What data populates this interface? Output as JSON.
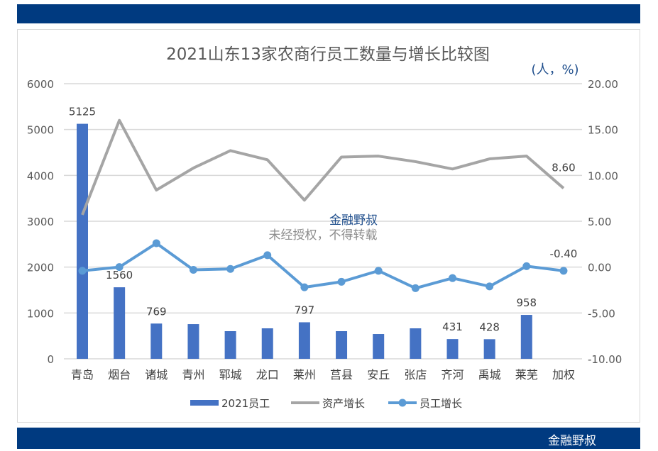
{
  "header_band": {
    "color": "#003a80"
  },
  "footer": {
    "brand": "金融野叔"
  },
  "watermark": {
    "line1": "金融野叔",
    "line2": "未经授权，不得转载"
  },
  "chart_data": {
    "type": "bar+line",
    "title": "2021山东13家农商行员工数量与增长比较图",
    "right_axis_unit": "(人，%)",
    "categories": [
      "青岛",
      "烟台",
      "诸城",
      "青州",
      "郓城",
      "龙口",
      "莱州",
      "莒县",
      "安丘",
      "张店",
      "齐河",
      "禹城",
      "莱芜",
      "加权"
    ],
    "left_axis": {
      "range": [
        0,
        6000
      ],
      "ticks": [
        "0",
        "1000",
        "2000",
        "3000",
        "4000",
        "5000",
        "6000"
      ]
    },
    "right_axis": {
      "range": [
        -10,
        20
      ],
      "ticks": [
        "-10.00",
        "-5.00",
        "0.00",
        "5.00",
        "10.00",
        "15.00",
        "20.00"
      ]
    },
    "grid": true,
    "legend_position": "bottom",
    "series": [
      {
        "name": "2021员工",
        "type": "bar",
        "axis": "left",
        "color": "#4472c4",
        "values": [
          5125,
          1560,
          769,
          757,
          603,
          665,
          797,
          603,
          541,
          665,
          431,
          428,
          958,
          null
        ],
        "labels": [
          "5125",
          "1560",
          "769",
          "",
          "",
          "",
          "797",
          "",
          "",
          "",
          "431",
          "428",
          "958",
          ""
        ]
      },
      {
        "name": "资产增长",
        "type": "line",
        "axis": "right",
        "color": "#a5a5a5",
        "values": [
          5.7,
          16.0,
          8.4,
          10.8,
          12.7,
          11.7,
          7.3,
          12.0,
          12.1,
          11.5,
          10.7,
          11.8,
          12.1,
          8.6
        ],
        "labels": [
          "",
          "",
          "",
          "",
          "",
          "",
          "",
          "",
          "",
          "",
          "",
          "",
          "",
          "8.60"
        ]
      },
      {
        "name": "员工增长",
        "type": "line-marker",
        "axis": "right",
        "color": "#5b9bd5",
        "values": [
          -0.4,
          0.0,
          2.6,
          -0.3,
          -0.2,
          1.3,
          -2.2,
          -1.6,
          -0.4,
          -2.3,
          -1.2,
          -2.1,
          0.1,
          -0.4
        ],
        "labels": [
          "",
          "",
          "",
          "",
          "",
          "",
          "",
          "",
          "",
          "",
          "",
          "",
          "",
          "-0.40"
        ]
      }
    ]
  }
}
